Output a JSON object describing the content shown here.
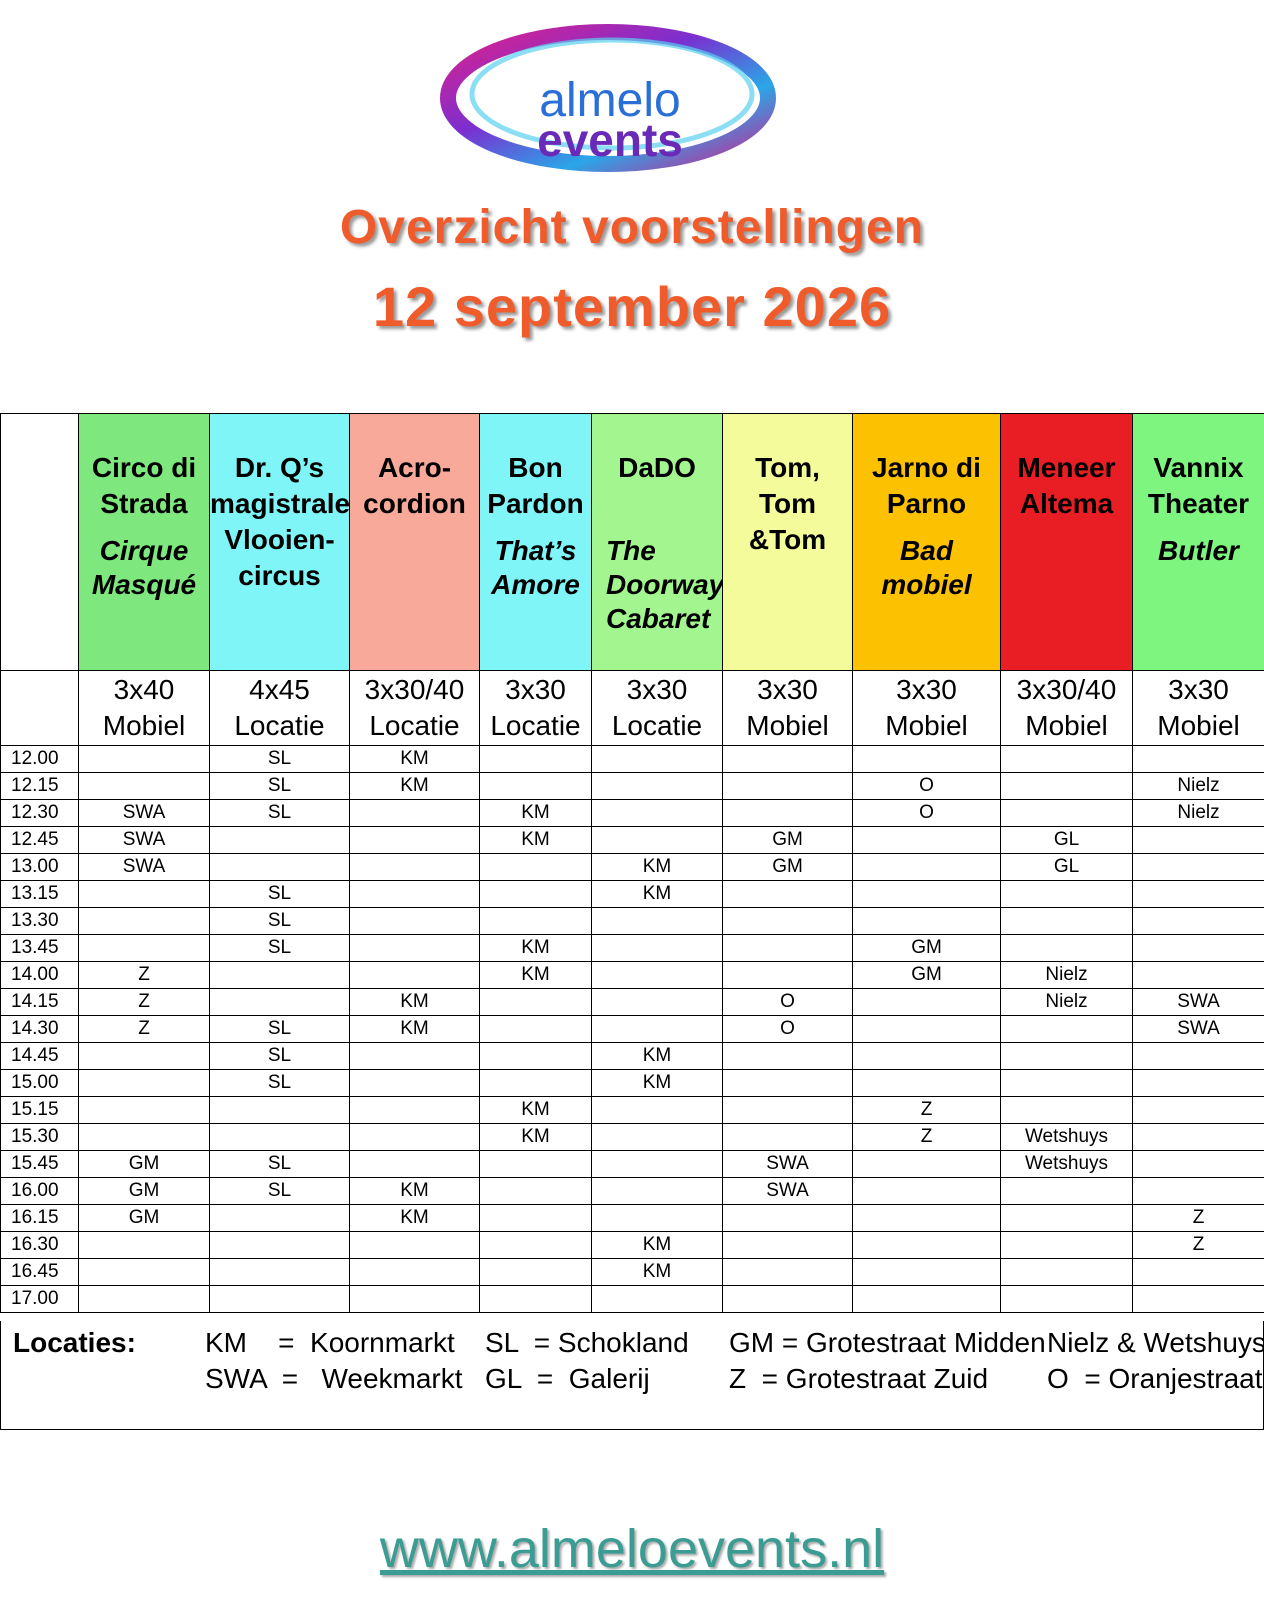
{
  "logo": {
    "line1": "almelo",
    "line2": "events"
  },
  "title": "Overzicht voorstellingen",
  "subtitle": "12 september 2026",
  "acts": [
    {
      "name": [
        "Circo di",
        "Strada"
      ],
      "show": [
        "Cirque",
        "Masqué"
      ],
      "color": "#7ee87e",
      "format": [
        "3x40",
        "Mobiel"
      ]
    },
    {
      "name": [
        "Dr. Q’s",
        "magistrale",
        "Vlooien-",
        "circus"
      ],
      "show": null,
      "color": "#7ff5f8",
      "format": [
        "4x45",
        "Locatie"
      ]
    },
    {
      "name": [
        "Acro-",
        "cordion"
      ],
      "show": null,
      "color": "#f9a99a",
      "format": [
        "3x30/40",
        "Locatie"
      ]
    },
    {
      "name": [
        "Bon",
        "Pardon"
      ],
      "show": [
        "That’s",
        "Amore"
      ],
      "color": "#7ff5f8",
      "format": [
        "3x30",
        "Locatie"
      ]
    },
    {
      "name": [
        "DaDO"
      ],
      "show": [
        "The",
        "Doorway",
        "Cabaret"
      ],
      "color": "#a2f58f",
      "format": [
        "3x30",
        "Locatie"
      ]
    },
    {
      "name": [
        "Tom,",
        "Tom",
        "&Tom"
      ],
      "show": null,
      "color": "#f3fb9a",
      "format": [
        "3x30",
        "Mobiel"
      ]
    },
    {
      "name": [
        "Jarno di",
        "Parno"
      ],
      "show": [
        "Bad",
        "mobiel"
      ],
      "color": "#fcc100",
      "format": [
        "3x30",
        "Mobiel"
      ]
    },
    {
      "name": [
        "Meneer",
        "Altema"
      ],
      "show": null,
      "color": "#e81e24",
      "format": [
        "3x30/40",
        "Mobiel"
      ]
    },
    {
      "name": [
        "Vannix",
        "Theater"
      ],
      "show": [
        "Butler"
      ],
      "color": "#7ef57e",
      "format": [
        "3x30",
        "Mobiel"
      ]
    }
  ],
  "schedule": [
    {
      "time": "12.00",
      "cells": [
        null,
        "SL",
        "KM",
        null,
        null,
        null,
        null,
        null,
        null
      ]
    },
    {
      "time": "12.15",
      "cells": [
        null,
        "SL",
        "KM",
        null,
        null,
        null,
        "O",
        null,
        "Nielz"
      ]
    },
    {
      "time": "12.30",
      "cells": [
        "SWA",
        "SL",
        null,
        "KM",
        null,
        null,
        "O",
        null,
        "Nielz"
      ]
    },
    {
      "time": "12.45",
      "cells": [
        "SWA",
        null,
        null,
        "KM",
        null,
        "GM",
        null,
        "GL",
        null
      ]
    },
    {
      "time": "13.00",
      "cells": [
        "SWA",
        null,
        null,
        null,
        "KM",
        "GM",
        null,
        "GL",
        null
      ]
    },
    {
      "time": "13.15",
      "cells": [
        null,
        "SL",
        null,
        null,
        "KM",
        null,
        null,
        null,
        null
      ]
    },
    {
      "time": "13.30",
      "cells": [
        null,
        "SL",
        null,
        null,
        null,
        null,
        null,
        null,
        null
      ]
    },
    {
      "time": "13.45",
      "cells": [
        null,
        "SL",
        null,
        "KM",
        null,
        null,
        "GM",
        null,
        null
      ]
    },
    {
      "time": "14.00",
      "cells": [
        "Z",
        null,
        null,
        "KM",
        null,
        null,
        "GM",
        "Nielz",
        null
      ]
    },
    {
      "time": "14.15",
      "cells": [
        "Z",
        null,
        "KM",
        null,
        null,
        "O",
        null,
        "Nielz",
        "SWA"
      ]
    },
    {
      "time": "14.30",
      "cells": [
        "Z",
        "SL",
        "KM",
        null,
        null,
        "O",
        null,
        null,
        "SWA"
      ]
    },
    {
      "time": "14.45",
      "cells": [
        null,
        "SL",
        null,
        null,
        "KM",
        null,
        null,
        null,
        null
      ]
    },
    {
      "time": "15.00",
      "cells": [
        null,
        "SL",
        null,
        null,
        "KM",
        null,
        null,
        null,
        null
      ]
    },
    {
      "time": "15.15",
      "cells": [
        null,
        null,
        null,
        "KM",
        null,
        null,
        "Z",
        null,
        null
      ]
    },
    {
      "time": "15.30",
      "cells": [
        null,
        null,
        null,
        "KM",
        null,
        null,
        "Z",
        "Wetshuys",
        null
      ]
    },
    {
      "time": "15.45",
      "cells": [
        "GM",
        "SL",
        null,
        null,
        null,
        "SWA",
        null,
        "Wetshuys",
        null
      ]
    },
    {
      "time": "16.00",
      "cells": [
        "GM",
        "SL",
        "KM",
        null,
        null,
        "SWA",
        null,
        null,
        null
      ]
    },
    {
      "time": "16.15",
      "cells": [
        "GM",
        null,
        "KM",
        null,
        null,
        null,
        null,
        null,
        "Z"
      ]
    },
    {
      "time": "16.30",
      "cells": [
        null,
        null,
        null,
        null,
        "KM",
        null,
        null,
        null,
        "Z"
      ]
    },
    {
      "time": "16.45",
      "cells": [
        null,
        null,
        null,
        null,
        "KM",
        null,
        null,
        null,
        null
      ]
    },
    {
      "time": "17.00",
      "cells": [
        null,
        null,
        null,
        null,
        null,
        null,
        null,
        null,
        null
      ]
    }
  ],
  "legend": {
    "label": "Locaties:",
    "items": [
      "KM    =  Koornmarkt",
      "SL  = Schokland",
      "GM = Grotestraat Midden",
      "Nielz & Wetshuys",
      "SWA  =   Weekmarkt",
      "GL  =  Galerij",
      "Z  = Grotestraat Zuid",
      "O  = Oranjestraat"
    ]
  },
  "url": "www.almeloevents.nl"
}
